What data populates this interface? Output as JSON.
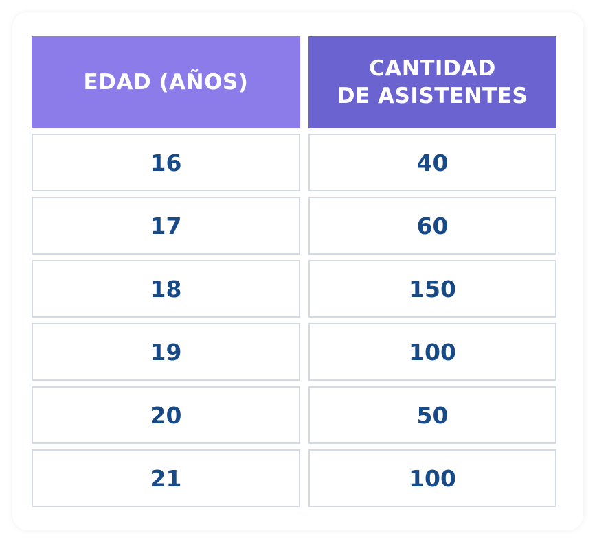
{
  "chart_data": {
    "type": "table",
    "columns": [
      "EDAD (AÑOS)",
      "CANTIDAD\nDE ASISTENTES"
    ],
    "rows": [
      [
        "16",
        "40"
      ],
      [
        "17",
        "60"
      ],
      [
        "18",
        "150"
      ],
      [
        "19",
        "100"
      ],
      [
        "20",
        "50"
      ],
      [
        "21",
        "100"
      ]
    ]
  },
  "colors": {
    "header_left": "#8b7ce9",
    "header_right": "#6a63d0",
    "cell_text": "#174a86",
    "cell_border": "#d4dae3"
  }
}
